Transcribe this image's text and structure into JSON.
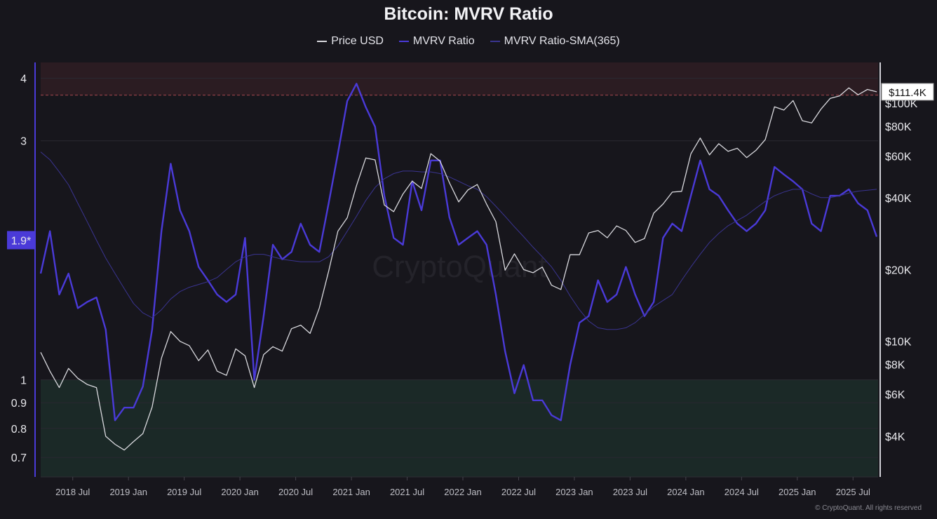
{
  "title": "Bitcoin: MVRV Ratio",
  "legend": [
    {
      "label": "Price USD",
      "color": "#d9d9de"
    },
    {
      "label": "MVRV Ratio",
      "color": "#4a3ad8"
    },
    {
      "label": "MVRV Ratio-SMA(365)",
      "color": "#3a3490"
    }
  ],
  "watermark": "CryptoQuant",
  "footer": "© CryptoQuant. All rights reserved",
  "chart_data": {
    "type": "line",
    "title": "Bitcoin: MVRV Ratio",
    "left_axis": {
      "scale": "log",
      "range": [
        0.64,
        4.3
      ],
      "ticks": [
        "4",
        "3",
        "1",
        "0.9",
        "0.8",
        "0.7"
      ],
      "tick_values": [
        4,
        3,
        1,
        0.9,
        0.8,
        0.7
      ],
      "current_label": "1.9*",
      "current_value": 1.9,
      "color": "#4a3ad8"
    },
    "right_axis": {
      "scale": "log",
      "range": [
        2700,
        148000
      ],
      "ticks": [
        "$100K",
        "$80K",
        "$60K",
        "$40K",
        "$20K",
        "$10K",
        "$8K",
        "$6K",
        "$4K"
      ],
      "tick_values": [
        100000,
        80000,
        60000,
        40000,
        20000,
        10000,
        8000,
        6000,
        4000
      ],
      "current_label": "$111.4K",
      "current_value": 111400
    },
    "x_axis": {
      "ticks": [
        "2018 Jul",
        "2019 Jan",
        "2019 Jul",
        "2020 Jan",
        "2020 Jul",
        "2021 Jan",
        "2021 Jul",
        "2022 Jan",
        "2022 Jul",
        "2023 Jan",
        "2023 Jul",
        "2024 Jan",
        "2024 Jul",
        "2025 Jan",
        "2025 Jul"
      ],
      "tick_dates": [
        "2018-07",
        "2019-01",
        "2019-07",
        "2020-01",
        "2020-07",
        "2021-01",
        "2021-07",
        "2022-01",
        "2022-07",
        "2023-01",
        "2023-07",
        "2024-01",
        "2024-07",
        "2025-01",
        "2025-07"
      ],
      "range": [
        "2018-04",
        "2025-10"
      ]
    },
    "zones": [
      {
        "name": "overvalued",
        "from": 3.7,
        "to": 4.3,
        "color": "#2b1c22",
        "line_color": "#a8484f"
      },
      {
        "name": "undervalued",
        "from": 0.64,
        "to": 1,
        "color": "#1b2927",
        "line_color": "#4f8a5a"
      }
    ],
    "grid": true,
    "legend_position": "top",
    "x": [
      "2018-04",
      "2018-05",
      "2018-06",
      "2018-07",
      "2018-08",
      "2018-09",
      "2018-10",
      "2018-11",
      "2018-12",
      "2019-01",
      "2019-02",
      "2019-03",
      "2019-04",
      "2019-05",
      "2019-06",
      "2019-07",
      "2019-08",
      "2019-09",
      "2019-10",
      "2019-11",
      "2019-12",
      "2020-01",
      "2020-02",
      "2020-03",
      "2020-04",
      "2020-05",
      "2020-06",
      "2020-07",
      "2020-08",
      "2020-09",
      "2020-10",
      "2020-11",
      "2020-12",
      "2021-01",
      "2021-02",
      "2021-03",
      "2021-04",
      "2021-05",
      "2021-06",
      "2021-07",
      "2021-08",
      "2021-09",
      "2021-10",
      "2021-11",
      "2021-12",
      "2022-01",
      "2022-02",
      "2022-03",
      "2022-04",
      "2022-05",
      "2022-06",
      "2022-07",
      "2022-08",
      "2022-09",
      "2022-10",
      "2022-11",
      "2022-12",
      "2023-01",
      "2023-02",
      "2023-03",
      "2023-04",
      "2023-05",
      "2023-06",
      "2023-07",
      "2023-08",
      "2023-09",
      "2023-10",
      "2023-11",
      "2023-12",
      "2024-01",
      "2024-02",
      "2024-03",
      "2024-04",
      "2024-05",
      "2024-06",
      "2024-07",
      "2024-08",
      "2024-09",
      "2024-10",
      "2024-11",
      "2024-12",
      "2025-01",
      "2025-02",
      "2025-03",
      "2025-04",
      "2025-05",
      "2025-06",
      "2025-07",
      "2025-08",
      "2025-09",
      "2025-10"
    ],
    "series": [
      {
        "name": "Price USD",
        "axis": "right",
        "color": "#d9d9de",
        "values": [
          9000,
          7500,
          6400,
          7700,
          7000,
          6600,
          6400,
          4000,
          3700,
          3500,
          3800,
          4100,
          5300,
          8500,
          11000,
          10000,
          9600,
          8300,
          9200,
          7500,
          7200,
          9300,
          8700,
          6400,
          8800,
          9500,
          9100,
          11300,
          11700,
          10800,
          13800,
          19700,
          29000,
          33000,
          45000,
          58800,
          57700,
          37300,
          35000,
          41500,
          47000,
          43800,
          61300,
          57000,
          46300,
          38500,
          43200,
          45500,
          37700,
          31800,
          19900,
          23300,
          20000,
          19400,
          20500,
          17200,
          16500,
          23100,
          23100,
          28500,
          29200,
          27200,
          30500,
          29200,
          26000,
          27000,
          34500,
          37700,
          42300,
          42600,
          61200,
          71300,
          60600,
          67500,
          62700,
          64600,
          59000,
          63300,
          70200,
          96400,
          93400,
          102400,
          84300,
          82500,
          94200,
          104600,
          107100,
          115700,
          108200,
          114000,
          111400
        ]
      },
      {
        "name": "MVRV Ratio",
        "axis": "left",
        "color": "#4a3ad8",
        "values": [
          1.63,
          1.98,
          1.48,
          1.63,
          1.39,
          1.43,
          1.46,
          1.26,
          0.83,
          0.88,
          0.88,
          0.97,
          1.26,
          1.98,
          2.7,
          2.18,
          1.98,
          1.68,
          1.58,
          1.48,
          1.43,
          1.48,
          1.92,
          1.0,
          1.34,
          1.86,
          1.74,
          1.8,
          2.05,
          1.86,
          1.8,
          2.25,
          2.83,
          3.6,
          3.9,
          3.5,
          3.2,
          2.33,
          1.92,
          1.86,
          2.49,
          2.18,
          2.74,
          2.74,
          2.11,
          1.86,
          1.92,
          1.98,
          1.86,
          1.48,
          1.14,
          0.94,
          1.07,
          0.91,
          0.91,
          0.85,
          0.83,
          1.07,
          1.3,
          1.34,
          1.58,
          1.43,
          1.48,
          1.68,
          1.48,
          1.34,
          1.43,
          1.92,
          2.05,
          1.98,
          2.33,
          2.74,
          2.4,
          2.33,
          2.18,
          2.05,
          1.98,
          2.05,
          2.18,
          2.66,
          2.57,
          2.49,
          2.4,
          2.05,
          1.98,
          2.33,
          2.33,
          2.4,
          2.25,
          2.18,
          1.93
        ]
      },
      {
        "name": "MVRV Ratio-SMA(365)",
        "axis": "left",
        "color": "#3a3490",
        "values": [
          2.85,
          2.75,
          2.6,
          2.45,
          2.25,
          2.07,
          1.9,
          1.75,
          1.63,
          1.52,
          1.42,
          1.36,
          1.33,
          1.38,
          1.45,
          1.5,
          1.53,
          1.55,
          1.57,
          1.6,
          1.66,
          1.72,
          1.76,
          1.78,
          1.78,
          1.76,
          1.74,
          1.73,
          1.72,
          1.72,
          1.72,
          1.76,
          1.85,
          1.98,
          2.12,
          2.28,
          2.42,
          2.52,
          2.58,
          2.61,
          2.61,
          2.6,
          2.6,
          2.58,
          2.54,
          2.49,
          2.44,
          2.4,
          2.32,
          2.22,
          2.12,
          2.02,
          1.93,
          1.84,
          1.76,
          1.68,
          1.58,
          1.47,
          1.38,
          1.31,
          1.27,
          1.26,
          1.26,
          1.27,
          1.3,
          1.35,
          1.4,
          1.44,
          1.48,
          1.58,
          1.68,
          1.78,
          1.88,
          1.96,
          2.03,
          2.08,
          2.13,
          2.2,
          2.27,
          2.33,
          2.37,
          2.4,
          2.4,
          2.35,
          2.31,
          2.31,
          2.33,
          2.36,
          2.38,
          2.39,
          2.4
        ]
      }
    ]
  }
}
